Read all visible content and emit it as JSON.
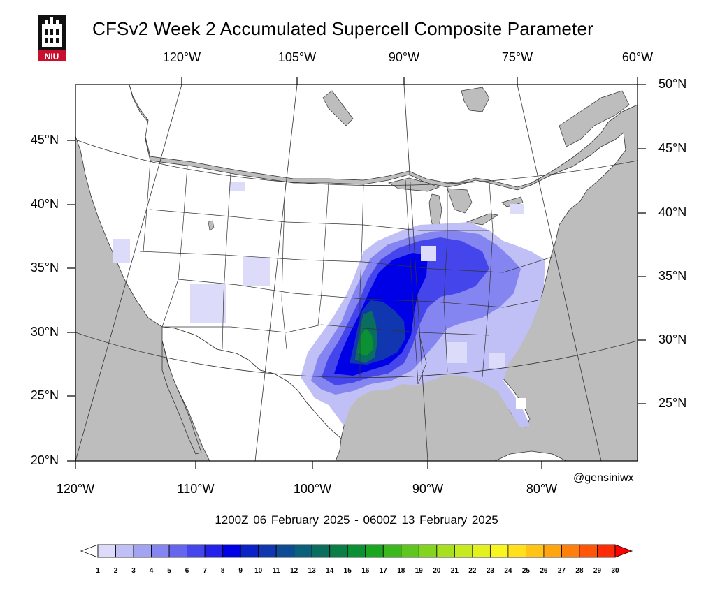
{
  "title": "CFSv2 Week 2 Accumulated Supercell Composite Parameter",
  "logo": {
    "text": "NIU",
    "icon": "niu-tower-logo"
  },
  "top_lon_labels": [
    "120°W",
    "105°W",
    "90°W",
    "75°W",
    "60°W"
  ],
  "right_lat_labels": [
    "50°N",
    "45°N",
    "40°N",
    "35°N",
    "30°N",
    "25°N"
  ],
  "left_lat_labels": [
    "45°N",
    "40°N",
    "35°N",
    "30°N",
    "25°N",
    "20°N"
  ],
  "bottom_lon_labels": [
    "120°W",
    "110°W",
    "100°W",
    "90°W",
    "80°W"
  ],
  "credit": "@gensiniwx",
  "valid_period": "1200Z 06  February  2025  - 0600Z 13  February  2025",
  "colorbar": {
    "ticks": [
      "1",
      "2",
      "3",
      "4",
      "5",
      "6",
      "7",
      "8",
      "9",
      "10",
      "11",
      "12",
      "13",
      "14",
      "15",
      "16",
      "17",
      "18",
      "19",
      "20",
      "21",
      "22",
      "23",
      "24",
      "25",
      "26",
      "27",
      "28",
      "29",
      "30"
    ],
    "colors": [
      "#ffffff",
      "#dcdcfa",
      "#c0c0f7",
      "#a3a3f4",
      "#8585f1",
      "#6565ee",
      "#4545ec",
      "#2222ea",
      "#0000e6",
      "#0a22c8",
      "#1036b0",
      "#0d4c95",
      "#0a5f7a",
      "#0a6e5e",
      "#0a7e46",
      "#0b9034",
      "#1aa71f",
      "#3cb81f",
      "#5fc61f",
      "#83d41f",
      "#a7e01f",
      "#c6ea1f",
      "#e3f21f",
      "#f8f51f",
      "#ffe01a",
      "#ffc414",
      "#ffa50f",
      "#ff7f0b",
      "#ff5508",
      "#ff2a06",
      "#ff0000"
    ]
  }
}
